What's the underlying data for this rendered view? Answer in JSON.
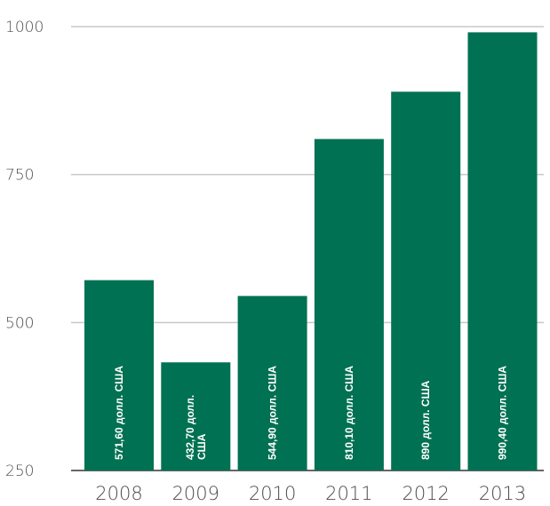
{
  "chart_data": {
    "type": "bar",
    "categories": [
      "2008",
      "2009",
      "2010",
      "2011",
      "2012",
      "2013"
    ],
    "values": [
      571.6,
      432.7,
      544.9,
      810.1,
      890,
      990.4
    ],
    "data_labels": [
      [
        "571,60 долл. США"
      ],
      [
        "432,70 долл.",
        "США"
      ],
      [
        "544,90 долл. США"
      ],
      [
        "810,10 долл. США"
      ],
      [
        "890 долл. США"
      ],
      [
        "990,40 долл. США"
      ]
    ],
    "ylim": [
      250,
      1000
    ],
    "yticks": [
      250,
      500,
      750,
      1000
    ],
    "grid": true,
    "bar_color": "#007152",
    "grid_color": "#c8c8c8",
    "axis_color": "#333333"
  }
}
